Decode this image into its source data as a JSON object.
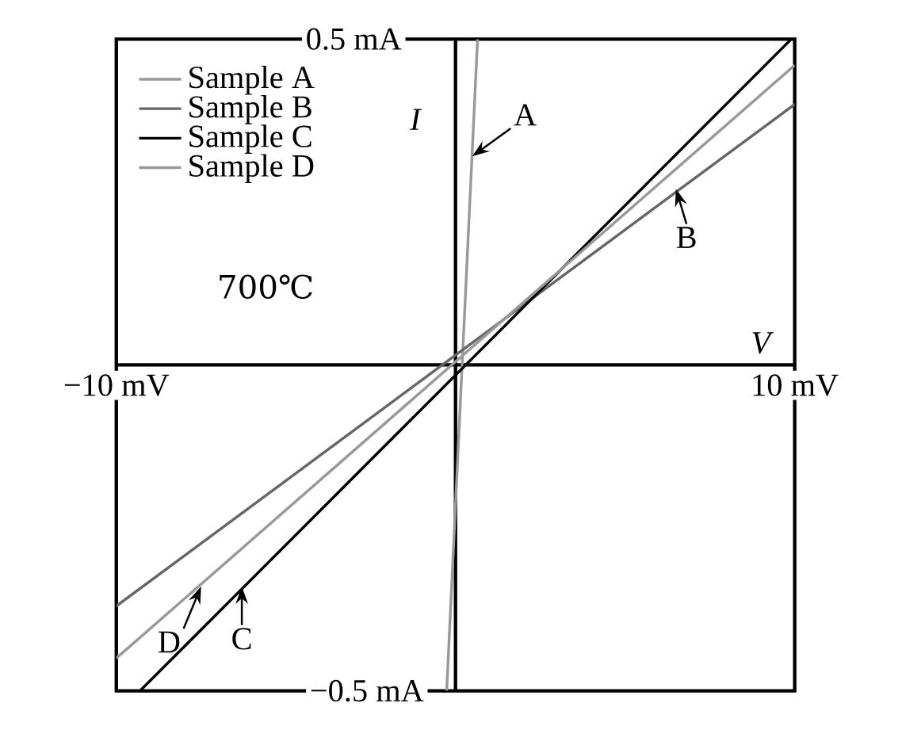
{
  "chart_data": {
    "type": "line",
    "xlabel": "V",
    "ylabel": "I",
    "xlim": [
      -10,
      10
    ],
    "ylim": [
      -0.5,
      0.5
    ],
    "xticks": [
      {
        "value": -10,
        "label": "−10 mV"
      },
      {
        "value": 10,
        "label": "10 mV"
      }
    ],
    "yticks": [
      {
        "value": -0.5,
        "label": "−0.5 mA"
      },
      {
        "value": 0.5,
        "label": "0.5 mA"
      }
    ],
    "legend": "top left",
    "line_style": "solid",
    "series": [
      {
        "name": "Sample A",
        "color": "#999999",
        "x": [
          -0.26,
          0.65
        ],
        "values": [
          -0.5,
          0.5
        ]
      },
      {
        "name": "Sample B",
        "color": "#666666",
        "x": [
          -10,
          10
        ],
        "values": [
          -0.37,
          0.4
        ]
      },
      {
        "name": "Sample C",
        "color": "#000000",
        "x": [
          -9.3,
          9.9
        ],
        "values": [
          -0.5,
          0.5
        ]
      },
      {
        "name": "Sample D",
        "color": "#999999",
        "x": [
          -10,
          10
        ],
        "values": [
          -0.45,
          0.46
        ]
      }
    ],
    "annotations": [
      {
        "text": "A",
        "x": 0.49,
        "y": 0.32
      },
      {
        "text": "B",
        "x": 6.5,
        "y": 0.27
      },
      {
        "text": "C",
        "x": -6.3,
        "y": -0.34
      },
      {
        "text": "D",
        "x": -7.5,
        "y": -0.34
      },
      "700℃"
    ]
  }
}
